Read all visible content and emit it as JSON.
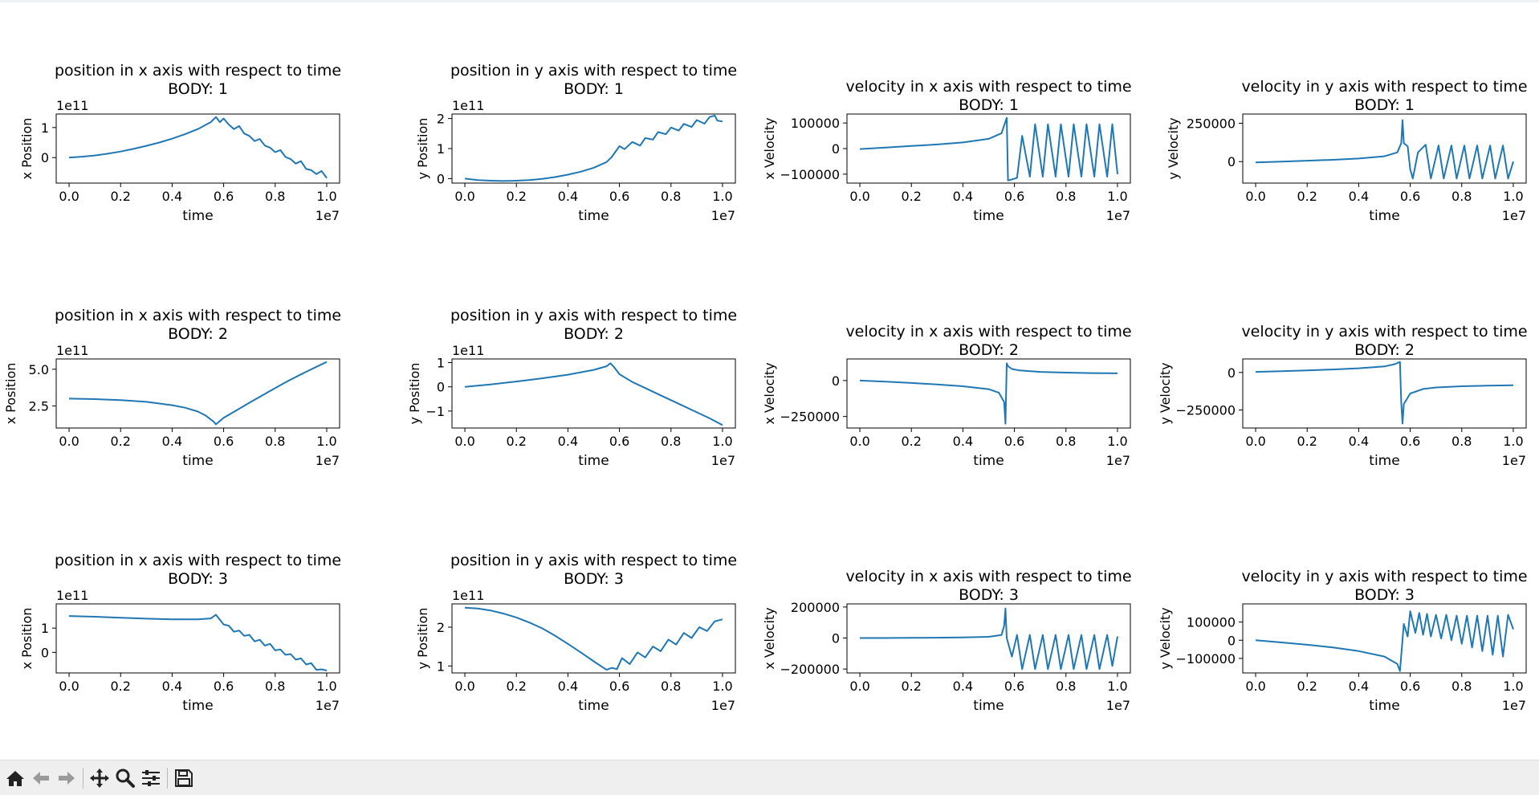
{
  "window": {
    "toolbar": {
      "buttons": [
        {
          "name": "home-button",
          "icon": "home-icon"
        },
        {
          "name": "back-button",
          "icon": "arrow-left-icon"
        },
        {
          "name": "forward-button",
          "icon": "arrow-right-icon"
        },
        {
          "name": "pan-button",
          "icon": "move-icon"
        },
        {
          "name": "zoom-button",
          "icon": "magnifier-icon"
        },
        {
          "name": "configure-subplots-button",
          "icon": "sliders-icon"
        },
        {
          "name": "save-button",
          "icon": "floppy-disk-icon"
        }
      ]
    }
  },
  "style": {
    "line_color": "#1f77b4",
    "axes_color": "#000000",
    "background": "#ffffff"
  },
  "chart_data": [
    {
      "type": "line",
      "title": "position in x axis with respect to time\nBODY: 1",
      "xlabel": "time",
      "ylabel": "x Position",
      "x_offset": "1e7",
      "y_offset": "1e11",
      "xlim": [
        -0.05,
        1.05
      ],
      "ylim": [
        -0.85,
        1.45
      ],
      "xticks": [
        0,
        0.2,
        0.4,
        0.6,
        0.8,
        1.0
      ],
      "xtick_labels": [
        "0.0",
        "0.2",
        "0.4",
        "0.6",
        "0.8",
        "1.0"
      ],
      "yticks": [
        0,
        1
      ],
      "ytick_labels": [
        "0",
        "1"
      ],
      "x": [
        0,
        0.05,
        0.1,
        0.15,
        0.2,
        0.25,
        0.3,
        0.35,
        0.4,
        0.45,
        0.5,
        0.55,
        0.57,
        0.585,
        0.6,
        0.62,
        0.64,
        0.66,
        0.68,
        0.7,
        0.72,
        0.74,
        0.76,
        0.78,
        0.8,
        0.82,
        0.84,
        0.86,
        0.88,
        0.9,
        0.92,
        0.94,
        0.96,
        0.98,
        1.0
      ],
      "y": [
        0,
        0.03,
        0.07,
        0.13,
        0.2,
        0.29,
        0.39,
        0.5,
        0.63,
        0.78,
        0.95,
        1.18,
        1.35,
        1.18,
        1.3,
        1.1,
        0.95,
        1.05,
        0.8,
        0.72,
        0.55,
        0.62,
        0.4,
        0.33,
        0.18,
        0.25,
        0.02,
        -0.05,
        -0.2,
        -0.12,
        -0.38,
        -0.42,
        -0.55,
        -0.45,
        -0.68
      ]
    },
    {
      "type": "line",
      "title": "position in y axis with respect to time\nBODY: 1",
      "xlabel": "time",
      "ylabel": "y Position",
      "x_offset": "1e7",
      "y_offset": "1e11",
      "xlim": [
        -0.05,
        1.05
      ],
      "ylim": [
        -0.15,
        2.15
      ],
      "xticks": [
        0,
        0.2,
        0.4,
        0.6,
        0.8,
        1.0
      ],
      "xtick_labels": [
        "0.0",
        "0.2",
        "0.4",
        "0.6",
        "0.8",
        "1.0"
      ],
      "yticks": [
        0,
        1,
        2
      ],
      "ytick_labels": [
        "0",
        "1",
        "2"
      ],
      "x": [
        0,
        0.05,
        0.1,
        0.15,
        0.2,
        0.25,
        0.3,
        0.35,
        0.4,
        0.45,
        0.5,
        0.55,
        0.57,
        0.6,
        0.62,
        0.65,
        0.68,
        0.7,
        0.73,
        0.75,
        0.78,
        0.8,
        0.83,
        0.85,
        0.88,
        0.9,
        0.93,
        0.95,
        0.97,
        0.98,
        1.0
      ],
      "y": [
        0.0,
        -0.05,
        -0.07,
        -0.08,
        -0.07,
        -0.05,
        -0.01,
        0.05,
        0.13,
        0.23,
        0.36,
        0.55,
        0.72,
        1.08,
        0.98,
        1.22,
        1.1,
        1.35,
        1.3,
        1.55,
        1.48,
        1.7,
        1.6,
        1.82,
        1.72,
        1.95,
        1.83,
        2.05,
        2.1,
        1.93,
        1.9
      ]
    },
    {
      "type": "line",
      "title": "velocity in x axis with respect to time\nBODY: 1",
      "xlabel": "time",
      "ylabel": "x Velocity",
      "x_offset": "1e7",
      "y_offset": "",
      "xlim": [
        -0.05,
        1.05
      ],
      "ylim": [
        -135000,
        135000
      ],
      "xticks": [
        0,
        0.2,
        0.4,
        0.6,
        0.8,
        1.0
      ],
      "xtick_labels": [
        "0.0",
        "0.2",
        "0.4",
        "0.6",
        "0.8",
        "1.0"
      ],
      "yticks": [
        -100000,
        0,
        100000
      ],
      "ytick_labels": [
        "−100000",
        "0",
        "100000"
      ],
      "x": [
        0,
        0.1,
        0.2,
        0.3,
        0.4,
        0.5,
        0.55,
        0.57,
        0.575,
        0.61,
        0.63,
        0.66,
        0.68,
        0.71,
        0.73,
        0.76,
        0.78,
        0.81,
        0.83,
        0.86,
        0.88,
        0.91,
        0.93,
        0.96,
        0.98,
        1.0
      ],
      "y": [
        -2000,
        4000,
        10000,
        16000,
        24000,
        38000,
        60000,
        120000,
        -125000,
        -115000,
        50000,
        -110000,
        95000,
        -110000,
        95000,
        -110000,
        95000,
        -110000,
        95000,
        -110000,
        95000,
        -110000,
        95000,
        -110000,
        95000,
        -100000
      ]
    },
    {
      "type": "line",
      "title": "velocity in y axis with respect to time\nBODY: 1",
      "xlabel": "time",
      "ylabel": "y Velocity",
      "x_offset": "1e7",
      "y_offset": "",
      "xlim": [
        -0.05,
        1.05
      ],
      "ylim": [
        -140000,
        310000
      ],
      "xticks": [
        0,
        0.2,
        0.4,
        0.6,
        0.8,
        1.0
      ],
      "xtick_labels": [
        "0.0",
        "0.2",
        "0.4",
        "0.6",
        "0.8",
        "1.0"
      ],
      "yticks": [
        0,
        250000
      ],
      "ytick_labels": [
        "0",
        "250000"
      ],
      "x": [
        0,
        0.1,
        0.2,
        0.3,
        0.4,
        0.5,
        0.55,
        0.565,
        0.57,
        0.575,
        0.59,
        0.6,
        0.61,
        0.63,
        0.66,
        0.68,
        0.71,
        0.73,
        0.76,
        0.78,
        0.81,
        0.83,
        0.86,
        0.88,
        0.91,
        0.93,
        0.96,
        0.98,
        1.0
      ],
      "y": [
        -5000,
        0,
        6000,
        12000,
        20000,
        35000,
        60000,
        120000,
        270000,
        120000,
        100000,
        -50000,
        -110000,
        60000,
        110000,
        -110000,
        105000,
        -110000,
        105000,
        -110000,
        105000,
        -110000,
        105000,
        -110000,
        105000,
        -110000,
        105000,
        -110000,
        0
      ]
    },
    {
      "type": "line",
      "title": "position in x axis with respect to time\nBODY: 2",
      "xlabel": "time",
      "ylabel": "x Position",
      "x_offset": "1e7",
      "y_offset": "1e11",
      "xlim": [
        -0.05,
        1.05
      ],
      "ylim": [
        1.0,
        5.7
      ],
      "xticks": [
        0,
        0.2,
        0.4,
        0.6,
        0.8,
        1.0
      ],
      "xtick_labels": [
        "0.0",
        "0.2",
        "0.4",
        "0.6",
        "0.8",
        "1.0"
      ],
      "yticks": [
        2.5,
        5.0
      ],
      "ytick_labels": [
        "2.5",
        "5.0"
      ],
      "x": [
        0,
        0.1,
        0.2,
        0.3,
        0.4,
        0.45,
        0.5,
        0.53,
        0.56,
        0.57,
        0.6,
        0.65,
        0.7,
        0.75,
        0.8,
        0.85,
        0.9,
        0.95,
        1.0
      ],
      "y": [
        3.0,
        2.97,
        2.9,
        2.78,
        2.55,
        2.38,
        2.12,
        1.85,
        1.45,
        1.25,
        1.7,
        2.2,
        2.72,
        3.22,
        3.72,
        4.2,
        4.65,
        5.08,
        5.5
      ]
    },
    {
      "type": "line",
      "title": "position in y axis with respect to time\nBODY: 2",
      "xlabel": "time",
      "ylabel": "y Position",
      "x_offset": "1e7",
      "y_offset": "1e11",
      "xlim": [
        -0.05,
        1.05
      ],
      "ylim": [
        -1.7,
        1.15
      ],
      "xticks": [
        0,
        0.2,
        0.4,
        0.6,
        0.8,
        1.0
      ],
      "xtick_labels": [
        "0.0",
        "0.2",
        "0.4",
        "0.6",
        "0.8",
        "1.0"
      ],
      "yticks": [
        -1,
        0,
        1
      ],
      "ytick_labels": [
        "−1",
        "0",
        "1"
      ],
      "x": [
        0,
        0.1,
        0.2,
        0.3,
        0.4,
        0.5,
        0.55,
        0.565,
        0.58,
        0.6,
        0.65,
        0.7,
        0.75,
        0.8,
        0.85,
        0.9,
        0.95,
        1.0
      ],
      "y": [
        0.0,
        0.1,
        0.22,
        0.35,
        0.5,
        0.7,
        0.85,
        0.97,
        0.8,
        0.52,
        0.2,
        -0.05,
        -0.3,
        -0.55,
        -0.8,
        -1.05,
        -1.3,
        -1.58
      ]
    },
    {
      "type": "line",
      "title": "velocity in x axis with respect to time\nBODY: 2",
      "xlabel": "time",
      "ylabel": "x Velocity",
      "x_offset": "1e7",
      "y_offset": "",
      "xlim": [
        -0.05,
        1.05
      ],
      "ylim": [
        -330000,
        150000
      ],
      "xticks": [
        0,
        0.2,
        0.4,
        0.6,
        0.8,
        1.0
      ],
      "xtick_labels": [
        "0.0",
        "0.2",
        "0.4",
        "0.6",
        "0.8",
        "1.0"
      ],
      "yticks": [
        -250000,
        0
      ],
      "ytick_labels": [
        "−250000",
        "0"
      ],
      "x": [
        0,
        0.1,
        0.2,
        0.3,
        0.4,
        0.5,
        0.54,
        0.56,
        0.565,
        0.57,
        0.575,
        0.59,
        0.62,
        0.7,
        0.8,
        0.9,
        1.0
      ],
      "y": [
        0,
        -8000,
        -17000,
        -27000,
        -40000,
        -60000,
        -85000,
        -150000,
        -300000,
        120000,
        100000,
        80000,
        70000,
        60000,
        55000,
        52000,
        50000
      ]
    },
    {
      "type": "line",
      "title": "velocity in y axis with respect to time\nBODY: 2",
      "xlabel": "time",
      "ylabel": "y Velocity",
      "x_offset": "1e7",
      "y_offset": "",
      "xlim": [
        -0.05,
        1.05
      ],
      "ylim": [
        -370000,
        90000
      ],
      "xticks": [
        0,
        0.2,
        0.4,
        0.6,
        0.8,
        1.0
      ],
      "xtick_labels": [
        "0.0",
        "0.2",
        "0.4",
        "0.6",
        "0.8",
        "1.0"
      ],
      "yticks": [
        -250000,
        0
      ],
      "ytick_labels": [
        "−250000",
        "0"
      ],
      "x": [
        0,
        0.1,
        0.2,
        0.3,
        0.4,
        0.5,
        0.54,
        0.56,
        0.565,
        0.57,
        0.575,
        0.6,
        0.65,
        0.7,
        0.8,
        0.9,
        1.0
      ],
      "y": [
        4000,
        8000,
        14000,
        20000,
        28000,
        40000,
        55000,
        70000,
        -200000,
        -340000,
        -210000,
        -140000,
        -110000,
        -100000,
        -92000,
        -88000,
        -85000
      ]
    },
    {
      "type": "line",
      "title": "position in x axis with respect to time\nBODY: 3",
      "xlabel": "time",
      "ylabel": "x Position",
      "x_offset": "1e7",
      "y_offset": "1e11",
      "xlim": [
        -0.05,
        1.05
      ],
      "ylim": [
        -0.85,
        2.0
      ],
      "xticks": [
        0,
        0.2,
        0.4,
        0.6,
        0.8,
        1.0
      ],
      "xtick_labels": [
        "0.0",
        "0.2",
        "0.4",
        "0.6",
        "0.8",
        "1.0"
      ],
      "yticks": [
        0,
        1
      ],
      "ytick_labels": [
        "0",
        "1"
      ],
      "x": [
        0,
        0.1,
        0.2,
        0.3,
        0.4,
        0.5,
        0.55,
        0.57,
        0.585,
        0.6,
        0.62,
        0.64,
        0.66,
        0.68,
        0.7,
        0.72,
        0.74,
        0.76,
        0.78,
        0.8,
        0.82,
        0.84,
        0.86,
        0.88,
        0.9,
        0.92,
        0.94,
        0.96,
        0.98,
        1.0
      ],
      "y": [
        1.5,
        1.47,
        1.43,
        1.39,
        1.36,
        1.36,
        1.4,
        1.55,
        1.35,
        1.15,
        1.1,
        0.85,
        0.9,
        0.68,
        0.72,
        0.45,
        0.52,
        0.28,
        0.35,
        0.08,
        0.12,
        -0.1,
        -0.07,
        -0.3,
        -0.25,
        -0.5,
        -0.45,
        -0.72,
        -0.7,
        -0.75
      ]
    },
    {
      "type": "line",
      "title": "position in y axis with respect to time\nBODY: 3",
      "xlabel": "time",
      "ylabel": "y Position",
      "x_offset": "1e7",
      "y_offset": "1e11",
      "xlim": [
        -0.05,
        1.05
      ],
      "ylim": [
        0.82,
        2.6
      ],
      "xticks": [
        0,
        0.2,
        0.4,
        0.6,
        0.8,
        1.0
      ],
      "xtick_labels": [
        "0.0",
        "0.2",
        "0.4",
        "0.6",
        "0.8",
        "1.0"
      ],
      "yticks": [
        1,
        2
      ],
      "ytick_labels": [
        "1",
        "2"
      ],
      "x": [
        0,
        0.05,
        0.1,
        0.15,
        0.2,
        0.25,
        0.3,
        0.35,
        0.4,
        0.45,
        0.5,
        0.55,
        0.57,
        0.59,
        0.61,
        0.64,
        0.67,
        0.7,
        0.73,
        0.76,
        0.79,
        0.82,
        0.85,
        0.88,
        0.91,
        0.94,
        0.97,
        1.0
      ],
      "y": [
        2.5,
        2.48,
        2.43,
        2.35,
        2.25,
        2.12,
        1.97,
        1.78,
        1.57,
        1.35,
        1.12,
        0.9,
        0.95,
        0.92,
        1.2,
        1.05,
        1.35,
        1.22,
        1.5,
        1.38,
        1.68,
        1.55,
        1.85,
        1.72,
        2.0,
        1.9,
        2.15,
        2.2
      ]
    },
    {
      "type": "line",
      "title": "velocity in x axis with respect to time\nBODY: 3",
      "xlabel": "time",
      "ylabel": "x Velocity",
      "x_offset": "1e7",
      "y_offset": "",
      "xlim": [
        -0.05,
        1.05
      ],
      "ylim": [
        -225000,
        220000
      ],
      "xticks": [
        0,
        0.2,
        0.4,
        0.6,
        0.8,
        1.0
      ],
      "xtick_labels": [
        "0.0",
        "0.2",
        "0.4",
        "0.6",
        "0.8",
        "1.0"
      ],
      "yticks": [
        -200000,
        0,
        200000
      ],
      "ytick_labels": [
        "−200000",
        "0",
        "200000"
      ],
      "x": [
        0,
        0.1,
        0.2,
        0.3,
        0.4,
        0.5,
        0.55,
        0.56,
        0.565,
        0.57,
        0.59,
        0.61,
        0.63,
        0.66,
        0.68,
        0.71,
        0.73,
        0.76,
        0.78,
        0.81,
        0.83,
        0.86,
        0.88,
        0.91,
        0.93,
        0.96,
        0.98,
        1.0
      ],
      "y": [
        0,
        0,
        1000,
        2000,
        4000,
        8000,
        20000,
        80000,
        190000,
        0,
        -120000,
        20000,
        -200000,
        20000,
        -200000,
        20000,
        -200000,
        20000,
        -200000,
        20000,
        -200000,
        20000,
        -200000,
        20000,
        -200000,
        20000,
        -180000,
        10000
      ]
    },
    {
      "type": "line",
      "title": "velocity in y axis with respect to time\nBODY: 3",
      "xlabel": "time",
      "ylabel": "y Velocity",
      "x_offset": "1e7",
      "y_offset": "",
      "xlim": [
        -0.05,
        1.05
      ],
      "ylim": [
        -180000,
        200000
      ],
      "xticks": [
        0,
        0.2,
        0.4,
        0.6,
        0.8,
        1.0
      ],
      "xtick_labels": [
        "0.0",
        "0.2",
        "0.4",
        "0.6",
        "0.8",
        "1.0"
      ],
      "yticks": [
        -100000,
        0,
        100000
      ],
      "ytick_labels": [
        "−100000",
        "0",
        "100000"
      ],
      "x": [
        0,
        0.1,
        0.2,
        0.3,
        0.4,
        0.5,
        0.55,
        0.56,
        0.575,
        0.59,
        0.6,
        0.62,
        0.635,
        0.65,
        0.665,
        0.68,
        0.7,
        0.72,
        0.74,
        0.76,
        0.78,
        0.8,
        0.82,
        0.84,
        0.86,
        0.88,
        0.9,
        0.92,
        0.94,
        0.96,
        0.98,
        1.0
      ],
      "y": [
        0,
        -12000,
        -25000,
        -40000,
        -60000,
        -90000,
        -130000,
        -170000,
        90000,
        20000,
        160000,
        40000,
        150000,
        30000,
        145000,
        20000,
        140000,
        10000,
        140000,
        0,
        135000,
        -20000,
        135000,
        -40000,
        135000,
        -60000,
        135000,
        -80000,
        135000,
        -90000,
        140000,
        60000
      ]
    }
  ]
}
